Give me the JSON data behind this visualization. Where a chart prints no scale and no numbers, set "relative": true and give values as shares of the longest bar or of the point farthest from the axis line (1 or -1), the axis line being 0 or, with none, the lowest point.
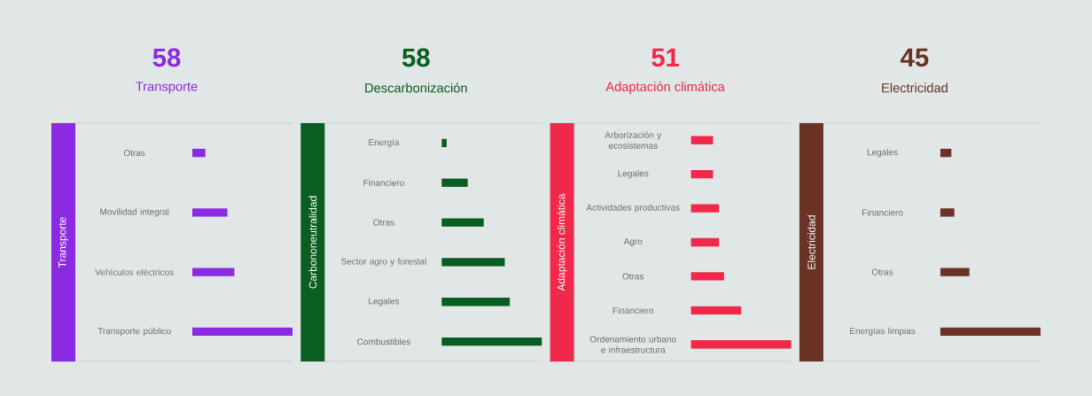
{
  "chart_data": [
    {
      "type": "bar",
      "orientation": "horizontal",
      "relative": true,
      "title": "58",
      "subtitle": "Transporte",
      "ylabel": "Transporte",
      "color": "#8a2be2",
      "categories": [
        "Otras",
        "Movilidad integral",
        "Vehículos eléctricos",
        "Transporte público"
      ],
      "values": [
        0.13,
        0.35,
        0.42,
        1
      ]
    },
    {
      "type": "bar",
      "orientation": "horizontal",
      "relative": true,
      "title": "58",
      "subtitle": "Descarbonización",
      "ylabel": "Carbononeutralidad",
      "color": "#0b5e22",
      "categories": [
        "Energía",
        "Financiero",
        "Otras",
        "Sector agro y forestal",
        "Legales",
        "Combustibles"
      ],
      "values": [
        0.05,
        0.26,
        0.42,
        0.63,
        0.68,
        1
      ]
    },
    {
      "type": "bar",
      "orientation": "horizontal",
      "relative": true,
      "title": "51",
      "subtitle": "Adaptación climática",
      "ylabel": "Adaptación climática",
      "color": "#f0284a",
      "categories": [
        "Arborización y ecosistemas",
        "Legales",
        "Actividades productivas",
        "Agro",
        "Otras",
        "Financiero",
        "Ordenamiento urbano e infraestructura"
      ],
      "values": [
        0.22,
        0.22,
        0.28,
        0.28,
        0.33,
        0.5,
        1
      ]
    },
    {
      "type": "bar",
      "orientation": "horizontal",
      "relative": true,
      "title": "45",
      "subtitle": "Electricidad",
      "ylabel": "Electricidad",
      "color": "#6a3325",
      "categories": [
        "Legales",
        "Financiero",
        "Otras",
        "Energías limpias"
      ],
      "values": [
        0.11,
        0.14,
        0.29,
        1
      ]
    }
  ]
}
